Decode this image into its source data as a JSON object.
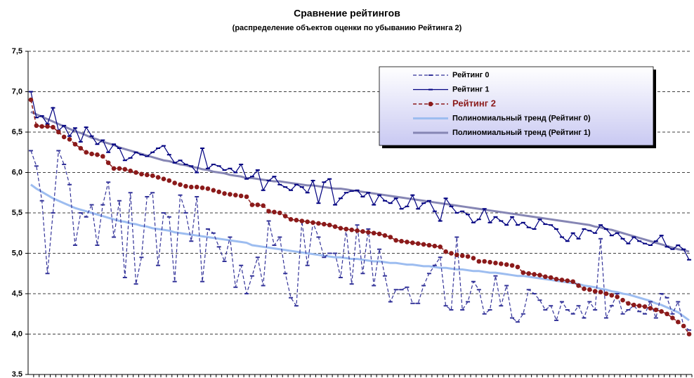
{
  "chart_data": {
    "type": "line",
    "title": "Сравнение рейтингов",
    "subtitle": "(распределение объектов оценки по убыванию Рейтинга 2)",
    "categories": [
      null,
      null,
      null,
      null,
      null,
      null,
      null,
      null,
      null,
      null,
      null,
      null,
      null,
      null,
      null,
      null,
      null,
      null,
      null,
      null,
      null,
      null,
      null,
      null,
      null,
      null,
      null,
      null,
      null,
      null,
      null,
      null,
      null,
      null,
      null,
      null,
      null,
      null,
      null,
      null,
      null,
      null,
      null,
      null,
      null,
      null,
      null,
      null,
      null,
      null,
      null,
      null,
      null,
      null,
      null,
      null,
      null,
      null,
      null,
      null,
      null,
      null,
      null,
      null,
      null,
      null,
      null,
      null,
      null,
      null,
      null,
      null,
      null,
      null,
      null,
      null,
      null,
      null,
      null,
      null,
      null,
      null,
      null,
      null,
      null,
      null,
      null,
      null,
      null,
      null,
      null,
      null,
      null,
      null,
      null,
      null,
      null,
      null,
      null,
      null,
      null,
      null,
      null,
      null,
      null,
      null,
      null,
      null,
      null,
      null,
      null,
      null,
      null,
      null,
      null,
      null,
      null,
      null,
      null,
      null
    ],
    "ylim": [
      3.5,
      7.5
    ],
    "yticks": [
      3.5,
      {
        "value": 4.0,
        "label": "4,0"
      },
      {
        "value": 4.5,
        "label": "4,5"
      },
      {
        "value": 5.0,
        "label": "5,0"
      },
      {
        "value": 5.5,
        "label": "5,5"
      },
      {
        "value": 6.0,
        "label": "6,0"
      },
      {
        "value": 6.5,
        "label": "6,5"
      },
      {
        "value": 7.0,
        "label": "7,0"
      },
      {
        "value": 7.5,
        "label": "7,5"
      }
    ],
    "grid": true,
    "legend": "top-right",
    "series": [
      {
        "name": "Рейтинг 0",
        "color": "#333399",
        "dashed": true,
        "marker": "dash",
        "width": 1.2,
        "values": [
          6.27,
          6.08,
          5.65,
          4.75,
          5.5,
          6.27,
          6.1,
          5.85,
          5.1,
          5.5,
          5.45,
          5.6,
          5.1,
          5.6,
          5.88,
          5.2,
          5.65,
          4.7,
          5.75,
          4.62,
          4.95,
          5.7,
          5.75,
          4.85,
          5.5,
          5.45,
          4.65,
          5.72,
          5.5,
          5.15,
          5.7,
          4.65,
          5.3,
          5.25,
          5.08,
          4.9,
          5.2,
          4.58,
          4.85,
          4.5,
          4.72,
          4.95,
          4.6,
          5.4,
          5.1,
          5.2,
          4.75,
          4.45,
          4.35,
          5.4,
          4.85,
          5.38,
          5.2,
          4.95,
          5.0,
          5.0,
          4.7,
          5.3,
          4.62,
          5.35,
          4.75,
          5.3,
          4.6,
          5.05,
          4.72,
          4.4,
          4.55,
          4.55,
          4.58,
          4.38,
          4.38,
          4.6,
          4.75,
          4.85,
          4.95,
          4.35,
          4.3,
          5.2,
          4.3,
          4.4,
          4.65,
          4.55,
          4.25,
          4.3,
          4.72,
          4.35,
          4.6,
          4.2,
          4.15,
          4.25,
          4.55,
          4.5,
          4.42,
          4.3,
          4.35,
          4.17,
          4.4,
          4.3,
          4.25,
          4.35,
          4.2,
          4.4,
          4.3,
          5.18,
          4.2,
          4.35,
          4.5,
          4.25,
          4.3,
          4.35,
          4.28,
          4.25,
          4.4,
          4.2,
          4.5,
          4.45,
          4.25,
          4.4,
          4.1,
          4.05
        ]
      },
      {
        "name": "Рейтинг 1",
        "color": "#000080",
        "dashed": false,
        "marker": "dash",
        "width": 1.2,
        "values": [
          7.0,
          6.68,
          6.7,
          6.6,
          6.8,
          6.52,
          6.58,
          6.45,
          6.55,
          6.38,
          6.56,
          6.45,
          6.35,
          6.4,
          6.25,
          6.35,
          6.3,
          6.15,
          6.18,
          6.25,
          6.22,
          6.2,
          6.25,
          6.3,
          6.33,
          6.22,
          6.12,
          6.15,
          6.1,
          6.08,
          6.0,
          6.3,
          6.05,
          6.1,
          6.08,
          6.03,
          6.05,
          6.0,
          6.1,
          5.92,
          5.95,
          6.03,
          5.78,
          5.9,
          5.95,
          5.85,
          5.82,
          5.78,
          5.85,
          5.82,
          5.75,
          5.9,
          5.62,
          5.88,
          5.92,
          5.6,
          5.68,
          5.75,
          5.77,
          5.78,
          5.7,
          5.75,
          5.6,
          5.72,
          5.65,
          5.62,
          5.68,
          5.55,
          5.58,
          5.72,
          5.55,
          5.62,
          5.65,
          5.52,
          5.4,
          5.68,
          5.58,
          5.5,
          5.52,
          5.48,
          5.38,
          5.42,
          5.55,
          5.38,
          5.45,
          5.4,
          5.35,
          5.45,
          5.35,
          5.38,
          5.32,
          5.3,
          5.42,
          5.36,
          5.35,
          5.3,
          5.2,
          5.15,
          5.25,
          5.18,
          5.3,
          5.28,
          5.25,
          5.35,
          5.3,
          5.22,
          5.25,
          5.18,
          5.12,
          5.2,
          5.15,
          5.12,
          5.1,
          5.15,
          5.22,
          5.08,
          5.05,
          5.1,
          5.05,
          4.92
        ]
      },
      {
        "name": "Рейтинг 2",
        "color": "#8b1a1a",
        "label_color": "#8b1a1a",
        "dashed": true,
        "marker": "circle",
        "width": 1.5,
        "values": [
          6.9,
          6.58,
          6.57,
          6.57,
          6.56,
          6.5,
          6.44,
          6.41,
          6.35,
          6.3,
          6.25,
          6.23,
          6.22,
          6.2,
          6.12,
          6.05,
          6.05,
          6.04,
          6.02,
          6.0,
          5.98,
          5.97,
          5.96,
          5.94,
          5.92,
          5.9,
          5.87,
          5.85,
          5.83,
          5.82,
          5.82,
          5.81,
          5.8,
          5.78,
          5.76,
          5.74,
          5.73,
          5.72,
          5.71,
          5.7,
          5.6,
          5.6,
          5.59,
          5.52,
          5.51,
          5.5,
          5.46,
          5.42,
          5.41,
          5.4,
          5.39,
          5.38,
          5.37,
          5.36,
          5.35,
          5.33,
          5.31,
          5.3,
          5.29,
          5.28,
          5.27,
          5.26,
          5.25,
          5.24,
          5.22,
          5.2,
          5.16,
          5.15,
          5.14,
          5.13,
          5.12,
          5.11,
          5.1,
          5.09,
          5.08,
          5.02,
          5.0,
          4.98,
          4.97,
          4.96,
          4.94,
          4.9,
          4.9,
          4.89,
          4.88,
          4.87,
          4.86,
          4.85,
          4.83,
          4.76,
          4.75,
          4.74,
          4.73,
          4.71,
          4.7,
          4.68,
          4.67,
          4.66,
          4.65,
          4.6,
          4.56,
          4.55,
          4.53,
          4.52,
          4.5,
          4.48,
          4.46,
          4.42,
          4.38,
          4.36,
          4.35,
          4.34,
          4.32,
          4.3,
          4.28,
          4.25,
          4.2,
          4.15,
          4.1,
          4.0
        ]
      },
      {
        "name": "Полиномиальный тренд (Рейтинг 0)",
        "color": "#9dbdf0",
        "dashed": false,
        "marker": "none",
        "width": 3,
        "values": [
          5.85,
          5.8,
          5.76,
          5.72,
          5.68,
          5.65,
          5.62,
          5.59,
          5.56,
          5.54,
          5.52,
          5.5,
          5.48,
          5.46,
          5.44,
          5.42,
          5.4,
          5.39,
          5.37,
          5.36,
          5.34,
          5.33,
          5.31,
          5.3,
          5.29,
          5.28,
          5.26,
          5.25,
          5.24,
          5.23,
          5.22,
          5.21,
          5.2,
          5.19,
          5.18,
          5.17,
          5.16,
          5.15,
          5.14,
          5.13,
          5.1,
          5.09,
          5.08,
          5.07,
          5.06,
          5.05,
          5.04,
          5.03,
          5.02,
          5.01,
          5.0,
          4.99,
          4.98,
          4.97,
          4.96,
          4.95,
          4.95,
          4.94,
          4.93,
          4.93,
          4.92,
          4.91,
          4.9,
          4.9,
          4.89,
          4.88,
          4.88,
          4.87,
          4.86,
          4.86,
          4.85,
          4.84,
          4.84,
          4.83,
          4.82,
          4.82,
          4.81,
          4.8,
          4.8,
          4.79,
          4.78,
          4.78,
          4.77,
          4.76,
          4.76,
          4.75,
          4.74,
          4.73,
          4.72,
          4.72,
          4.71,
          4.7,
          4.69,
          4.68,
          4.67,
          4.66,
          4.65,
          4.64,
          4.63,
          4.62,
          4.6,
          4.59,
          4.58,
          4.56,
          4.55,
          4.53,
          4.52,
          4.5,
          4.49,
          4.47,
          4.45,
          4.43,
          4.41,
          4.38,
          4.36,
          4.33,
          4.3,
          4.27,
          4.22,
          4.17
        ]
      },
      {
        "name": "Полиномиальный тренд (Рейтинг 1)",
        "color": "#8686b4",
        "dashed": false,
        "marker": "none",
        "width": 3,
        "values": [
          6.75,
          6.72,
          6.69,
          6.66,
          6.63,
          6.6,
          6.57,
          6.54,
          6.51,
          6.49,
          6.46,
          6.43,
          6.41,
          6.38,
          6.36,
          6.34,
          6.31,
          6.29,
          6.27,
          6.25,
          6.23,
          6.21,
          6.19,
          6.17,
          6.15,
          6.14,
          6.12,
          6.1,
          6.09,
          6.07,
          6.06,
          6.04,
          6.03,
          6.01,
          6.0,
          5.99,
          5.97,
          5.96,
          5.95,
          5.93,
          5.93,
          5.92,
          5.91,
          5.9,
          5.89,
          5.89,
          5.88,
          5.87,
          5.86,
          5.85,
          5.84,
          5.84,
          5.83,
          5.82,
          5.81,
          5.8,
          5.8,
          5.79,
          5.78,
          5.77,
          5.76,
          5.75,
          5.74,
          5.73,
          5.72,
          5.71,
          5.7,
          5.69,
          5.68,
          5.67,
          5.66,
          5.65,
          5.64,
          5.63,
          5.62,
          5.61,
          5.6,
          5.59,
          5.58,
          5.57,
          5.56,
          5.55,
          5.54,
          5.53,
          5.52,
          5.51,
          5.5,
          5.49,
          5.48,
          5.47,
          5.46,
          5.45,
          5.44,
          5.43,
          5.42,
          5.41,
          5.4,
          5.39,
          5.38,
          5.37,
          5.36,
          5.35,
          5.33,
          5.32,
          5.3,
          5.29,
          5.27,
          5.25,
          5.23,
          5.21,
          5.19,
          5.17,
          5.15,
          5.13,
          5.11,
          5.09,
          5.07,
          5.05,
          5.04,
          5.02
        ]
      }
    ]
  }
}
